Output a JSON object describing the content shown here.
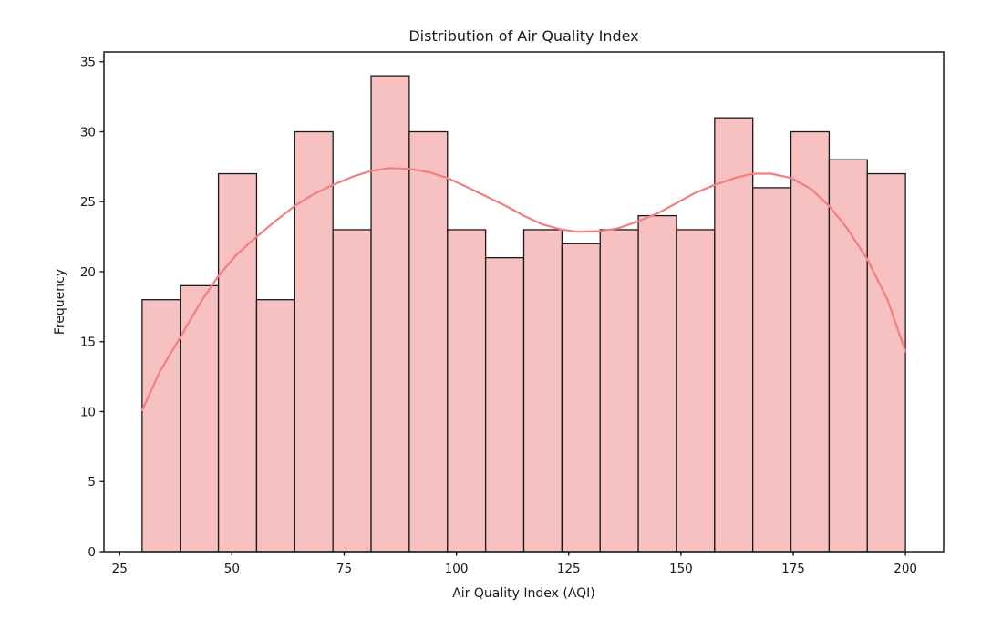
{
  "chart_data": {
    "type": "bar",
    "subtype": "histogram_with_kde",
    "title": "Distribution of Air Quality Index",
    "xlabel": "Air Quality Index (AQI)",
    "ylabel": "Frequency",
    "bin_edges": [
      30,
      38.5,
      47,
      55.5,
      64,
      72.5,
      81,
      89.5,
      98,
      106.5,
      115,
      123.5,
      132,
      140.5,
      149,
      157.5,
      166,
      174.5,
      183,
      191.5,
      200
    ],
    "frequencies": [
      18,
      19,
      27,
      18,
      30,
      23,
      34,
      30,
      23,
      21,
      23,
      22,
      23,
      24,
      23,
      31,
      26,
      30,
      28,
      27
    ],
    "kde_line": {
      "x": [
        30,
        34,
        38.5,
        43,
        47,
        51,
        55.5,
        60,
        64,
        68,
        72.5,
        77,
        81,
        85,
        89.5,
        94,
        98,
        102,
        106.5,
        111,
        115,
        119,
        123.5,
        127,
        132,
        136,
        140.5,
        145,
        149,
        153,
        157.5,
        162,
        166,
        170,
        174.5,
        179,
        183,
        187,
        191.5,
        196,
        200
      ],
      "y": [
        10.1,
        12.9,
        15.3,
        17.8,
        19.7,
        21.2,
        22.5,
        23.7,
        24.7,
        25.5,
        26.2,
        26.8,
        27.2,
        27.4,
        27.35,
        27.1,
        26.7,
        26.1,
        25.4,
        24.7,
        24.0,
        23.4,
        23.0,
        22.85,
        22.9,
        23.1,
        23.6,
        24.2,
        24.9,
        25.6,
        26.2,
        26.7,
        27.0,
        27.0,
        26.7,
        25.9,
        24.7,
        23.1,
        20.9,
        18.0,
        14.3
      ]
    },
    "x_ticks": [
      25,
      50,
      75,
      100,
      125,
      150,
      175,
      200
    ],
    "y_ticks": [
      0,
      5,
      10,
      15,
      20,
      25,
      30,
      35
    ],
    "xlim": [
      21.5,
      208.5
    ],
    "ylim": [
      0,
      35.7
    ],
    "grid": false,
    "colors": {
      "bar_fill": "#f7c1c1",
      "bar_edge": "#1a1a1a",
      "kde_line": "#f08080",
      "text": "#1a1a1a",
      "spine": "#1a1a1a",
      "background": "#ffffff"
    }
  }
}
